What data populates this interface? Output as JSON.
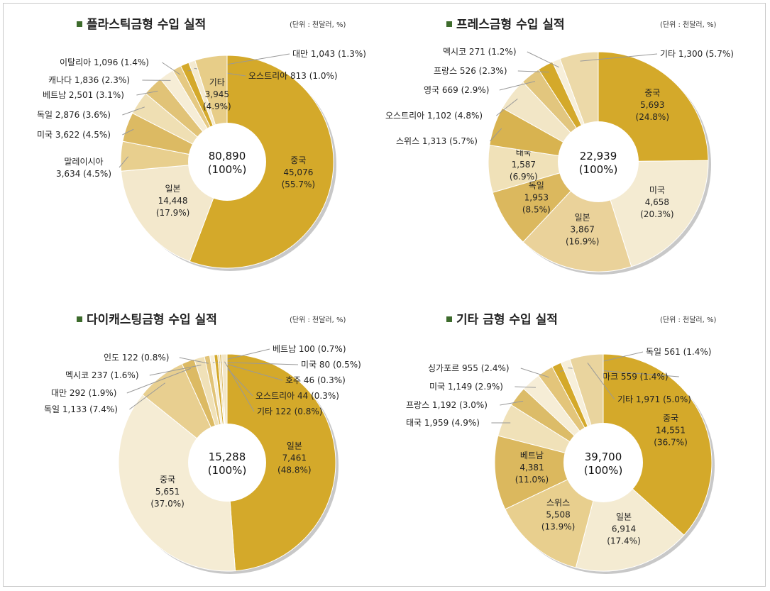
{
  "palette": [
    "#d4a92a",
    "#f4ead0",
    "#e7cd88",
    "#d9b55a",
    "#eedeb0",
    "#dfc070",
    "#f7efd9",
    "#e3c57a"
  ],
  "shadow_color": "#c8c8c8",
  "chart_data": [
    {
      "type": "pie",
      "title": "플라스틱금형 수입 실적",
      "unit": "(단위 : 천달러, %)",
      "total_value": "80,890",
      "total_pct": "(100%)",
      "slices": [
        {
          "name": "중국",
          "value": 45076,
          "value_text": "45,076",
          "pct": "55.7%",
          "label_style": "inside",
          "color": "#d4a92a"
        },
        {
          "name": "일본",
          "value": 14448,
          "value_text": "14,448",
          "pct": "17.9%",
          "label_style": "inside",
          "color": "#f3e8cc"
        },
        {
          "name": "말레이시아",
          "value": 3634,
          "value_text": "3,634",
          "pct": "4.5%",
          "label_style": "outside2",
          "color": "#e8cf8e"
        },
        {
          "name": "미국",
          "value": 3622,
          "value_text": "3,622",
          "pct": "4.5%",
          "label_style": "outside",
          "color": "#dcba63"
        },
        {
          "name": "독일",
          "value": 2876,
          "value_text": "2,876",
          "pct": "3.6%",
          "label_style": "outside",
          "color": "#efdfb3"
        },
        {
          "name": "베트남",
          "value": 2501,
          "value_text": "2,501",
          "pct": "3.1%",
          "label_style": "outside",
          "color": "#e1c377"
        },
        {
          "name": "캐나다",
          "value": 1836,
          "value_text": "1,836",
          "pct": "2.3%",
          "label_style": "outside",
          "color": "#f6edd6"
        },
        {
          "name": "이탈리아",
          "value": 1096,
          "value_text": "1,096",
          "pct": "1.4%",
          "label_style": "outside",
          "color": "#e5c982"
        },
        {
          "name": "대만",
          "value": 1043,
          "value_text": "1,043",
          "pct": "1.3%",
          "label_style": "outside",
          "color": "#d4a92a"
        },
        {
          "name": "오스트리아",
          "value": 813,
          "value_text": "813",
          "pct": "1.0%",
          "label_style": "outside",
          "color": "#f4ead0"
        },
        {
          "name": "기타",
          "value": 3945,
          "value_text": "3,945",
          "pct": "4.9%",
          "label_style": "inside",
          "color": "#e7cd88"
        }
      ]
    },
    {
      "type": "pie",
      "title": "프레스금형 수입 실적",
      "unit": "(단위 : 천달러, %)",
      "total_value": "22,939",
      "total_pct": "(100%)",
      "slices": [
        {
          "name": "중국",
          "value": 5693,
          "value_text": "5,693",
          "pct": "24.8%",
          "label_style": "inside",
          "color": "#d4a92a"
        },
        {
          "name": "미국",
          "value": 4658,
          "value_text": "4,658",
          "pct": "20.3%",
          "label_style": "inside",
          "color": "#f4ebd2"
        },
        {
          "name": "일본",
          "value": 3867,
          "value_text": "3,867",
          "pct": "16.9%",
          "label_style": "inside",
          "color": "#ead29a"
        },
        {
          "name": "독일",
          "value": 1953,
          "value_text": "1,953",
          "pct": "8.5%",
          "label_style": "inside",
          "color": "#dbb85e"
        },
        {
          "name": "태국",
          "value": 1587,
          "value_text": "1,587",
          "pct": "6.9%",
          "label_style": "inside",
          "color": "#f0e1b8"
        },
        {
          "name": "스위스",
          "value": 1313,
          "value_text": "1,313",
          "pct": "5.7%",
          "label_style": "outside",
          "color": "#d8b350"
        },
        {
          "name": "오스트리아",
          "value": 1102,
          "value_text": "1,102",
          "pct": "4.8%",
          "label_style": "outside",
          "color": "#f2e6c6"
        },
        {
          "name": "영국",
          "value": 669,
          "value_text": "669",
          "pct": "2.9%",
          "label_style": "outside",
          "color": "#e2c67e"
        },
        {
          "name": "프랑스",
          "value": 526,
          "value_text": "526",
          "pct": "2.3%",
          "label_style": "outside",
          "color": "#d4a92a"
        },
        {
          "name": "멕시코",
          "value": 271,
          "value_text": "271",
          "pct": "1.2%",
          "label_style": "outside",
          "color": "#f7efda"
        },
        {
          "name": "기타",
          "value": 1300,
          "value_text": "1,300",
          "pct": "5.7%",
          "label_style": "outside",
          "color": "#ecd9a8"
        }
      ]
    },
    {
      "type": "pie",
      "title": "다이캐스팅금형 수입 실적",
      "unit": "(단위 : 천달러, %)",
      "total_value": "15,288",
      "total_pct": "(100%)",
      "slices": [
        {
          "name": "일본",
          "value": 7461,
          "value_text": "7,461",
          "pct": "48.8%",
          "label_style": "inside",
          "color": "#d4a92a"
        },
        {
          "name": "중국",
          "value": 5651,
          "value_text": "5,651",
          "pct": "37.0%",
          "label_style": "inside",
          "color": "#f5ecd4"
        },
        {
          "name": "독일",
          "value": 1133,
          "value_text": "1,133",
          "pct": "7.4%",
          "label_style": "outside",
          "color": "#e8cf90"
        },
        {
          "name": "대만",
          "value": 292,
          "value_text": "292",
          "pct": "1.9%",
          "label_style": "outside",
          "color": "#dcba63"
        },
        {
          "name": "멕시코",
          "value": 237,
          "value_text": "237",
          "pct": "1.6%",
          "label_style": "outside",
          "color": "#f0e1b8"
        },
        {
          "name": "인도",
          "value": 122,
          "value_text": "122",
          "pct": "0.8%",
          "label_style": "outside",
          "color": "#e1c377"
        },
        {
          "name": "베트남",
          "value": 100,
          "value_text": "100",
          "pct": "0.7%",
          "label_style": "outside",
          "color": "#f7efda"
        },
        {
          "name": "미국",
          "value": 80,
          "value_text": "80",
          "pct": "0.5%",
          "label_style": "outside",
          "color": "#d4a92a"
        },
        {
          "name": "호주",
          "value": 46,
          "value_text": "46",
          "pct": "0.3%",
          "label_style": "outside",
          "color": "#ecd9a8"
        },
        {
          "name": "오스트리아",
          "value": 44,
          "value_text": "44",
          "pct": "0.3%",
          "label_style": "outside",
          "color": "#dcba63"
        },
        {
          "name": "기타",
          "value": 122,
          "value_text": "122",
          "pct": "0.8%",
          "label_style": "outside",
          "color": "#f2e6c6"
        }
      ]
    },
    {
      "type": "pie",
      "title": "기타 금형 수입 실적",
      "unit": "(단위 : 천달러, %)",
      "total_value": "39,700",
      "total_pct": "(100%)",
      "slices": [
        {
          "name": "중국",
          "value": 14551,
          "value_text": "14,551",
          "pct": "36.7%",
          "label_style": "inside",
          "color": "#d4a92a"
        },
        {
          "name": "일본",
          "value": 6914,
          "value_text": "6,914",
          "pct": "17.4%",
          "label_style": "inside",
          "color": "#f4ebd2"
        },
        {
          "name": "스위스",
          "value": 5508,
          "value_text": "5,508",
          "pct": "13.9%",
          "label_style": "inside",
          "color": "#e8cf8e"
        },
        {
          "name": "베트남",
          "value": 4381,
          "value_text": "4,381",
          "pct": "11.0%",
          "label_style": "inside",
          "color": "#dbb85e"
        },
        {
          "name": "태국",
          "value": 1959,
          "value_text": "1,959",
          "pct": "4.9%",
          "label_style": "outside",
          "color": "#f0e1b8"
        },
        {
          "name": "프랑스",
          "value": 1192,
          "value_text": "1,192",
          "pct": "3.0%",
          "label_style": "outside",
          "color": "#dcbc68"
        },
        {
          "name": "미국",
          "value": 1149,
          "value_text": "1,149",
          "pct": "2.9%",
          "label_style": "outside",
          "color": "#f6edd6"
        },
        {
          "name": "싱가포르",
          "value": 955,
          "value_text": "955",
          "pct": "2.4%",
          "label_style": "outside",
          "color": "#e3c57a"
        },
        {
          "name": "독일",
          "value": 561,
          "value_text": "561",
          "pct": "1.4%",
          "label_style": "outside",
          "color": "#d4a92a"
        },
        {
          "name": "덴마크",
          "value": 559,
          "value_text": "559",
          "pct": "1.4%",
          "label_style": "outside",
          "color": "#f7efda"
        },
        {
          "name": "기타",
          "value": 1971,
          "value_text": "1,971",
          "pct": "5.0%",
          "label_style": "outside",
          "color": "#e9d49e"
        }
      ]
    }
  ]
}
